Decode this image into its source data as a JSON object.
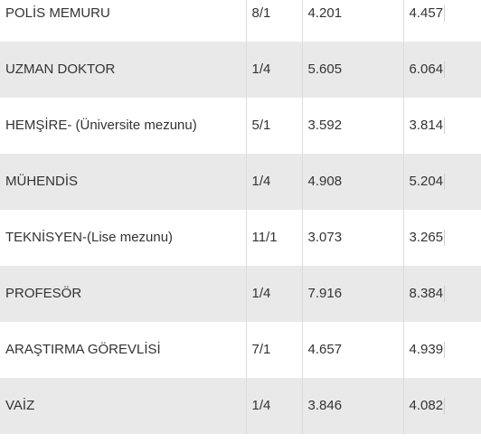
{
  "table": {
    "rows": [
      {
        "title": "POLİS MEMURU",
        "grade": "8/1",
        "low": "4.201",
        "high": "4.457"
      },
      {
        "title": "UZMAN DOKTOR",
        "grade": "1/4",
        "low": "5.605",
        "high": "6.064"
      },
      {
        "title": "HEMŞİRE- (Üniversite mezunu)",
        "grade": "5/1",
        "low": "3.592",
        "high": "3.814"
      },
      {
        "title": "MÜHENDİS",
        "grade": "1/4",
        "low": "4.908",
        "high": "5.204"
      },
      {
        "title": "TEKNİSYEN-(Lise mezunu)",
        "grade": "11/1",
        "low": "3.073",
        "high": "3.265"
      },
      {
        "title": "PROFESÖR",
        "grade": "1/4",
        "low": "7.916",
        "high": "8.384"
      },
      {
        "title": "ARAŞTIRMA GÖREVLİSİ",
        "grade": "7/1",
        "low": "4.657",
        "high": "4.939"
      },
      {
        "title": "VAİZ",
        "grade": "1/4",
        "low": "3.846",
        "high": "4.082"
      }
    ]
  }
}
